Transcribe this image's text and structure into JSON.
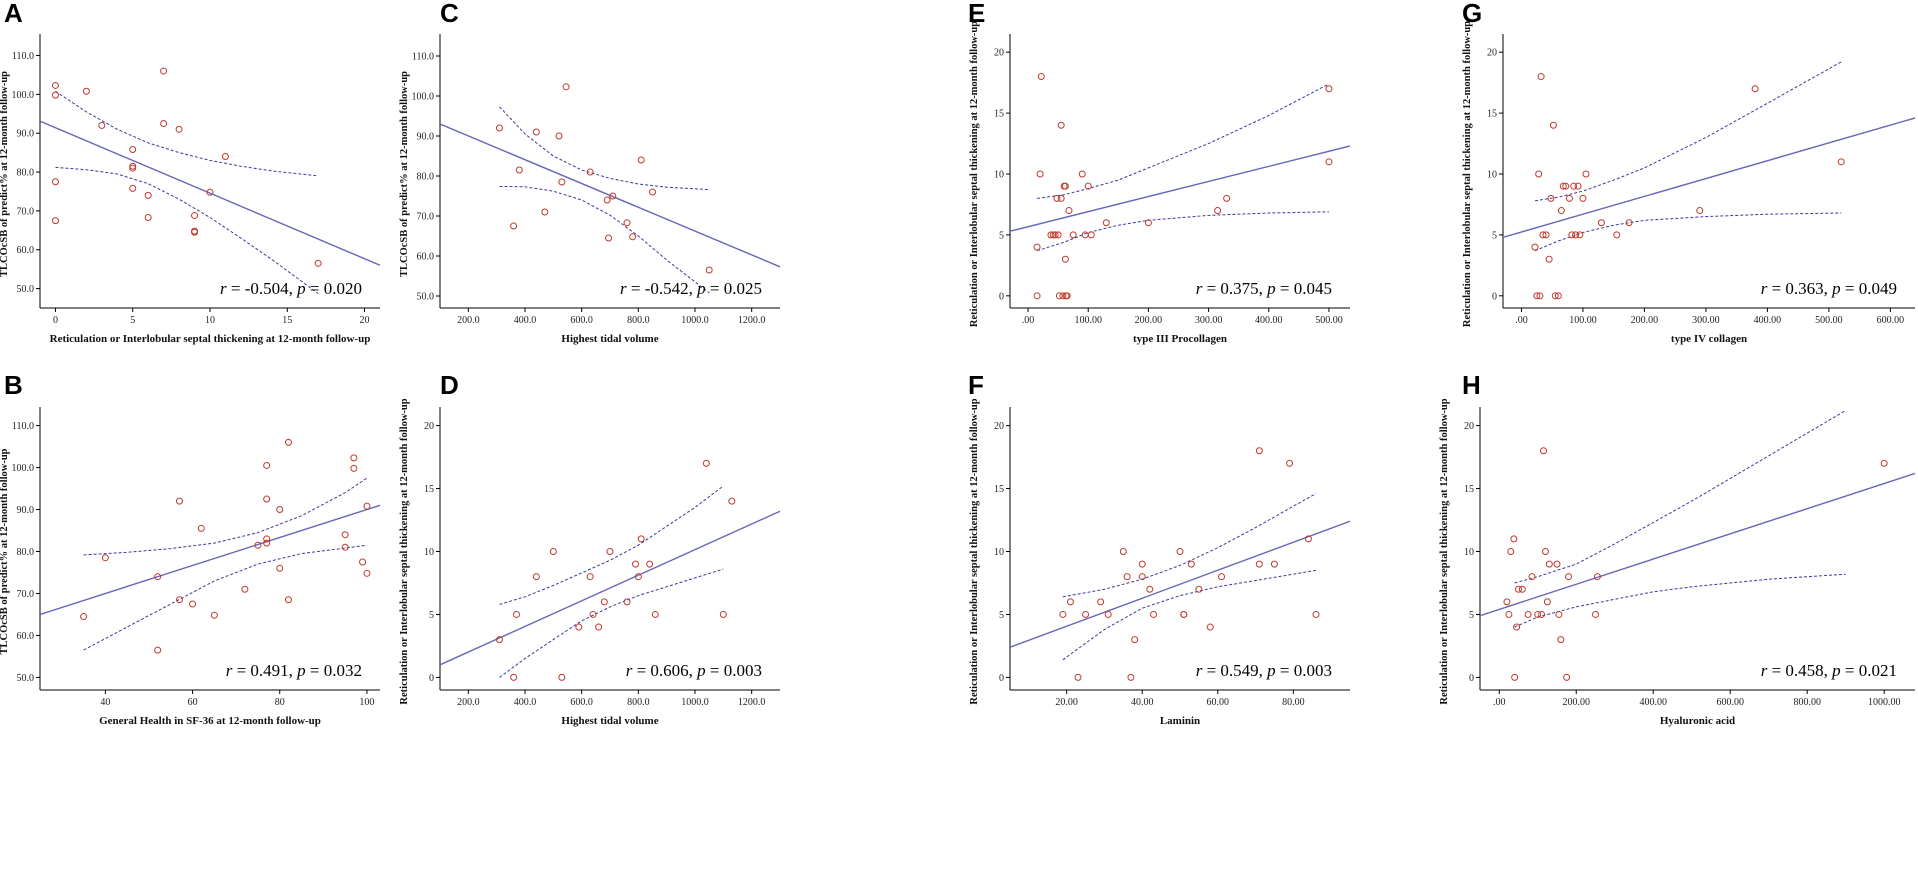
{
  "colors": {
    "points": "#c0392b",
    "fit_line": "#6666b8",
    "ci_line": "#3a3aa0"
  },
  "chart_data": [
    {
      "id": "A",
      "letter": "A",
      "type": "scatter",
      "xlabel": "Reticulation or Interlobular septal thickening at 12-month follow-up",
      "ylabel": "TLCOcSB of predict% at 12-month follow-up",
      "xlim": [
        -1,
        21
      ],
      "ylim": [
        45,
        114
      ],
      "xticks": [
        0,
        5,
        10,
        15,
        20
      ],
      "xtick_labels": [
        "0",
        "5",
        "10",
        "15",
        "20"
      ],
      "yticks": [
        50,
        60,
        70,
        80,
        90,
        100,
        110
      ],
      "ytick_labels": [
        "50.0",
        "60.0",
        "70.0",
        "80.0",
        "90.0",
        "100.0",
        "110.0"
      ],
      "x": [
        0,
        0,
        0,
        0,
        2,
        3,
        5,
        5,
        5,
        5,
        6,
        6,
        7,
        7,
        8,
        9,
        9,
        9,
        10,
        11,
        17
      ],
      "y": [
        102.3,
        99.8,
        77.5,
        67.5,
        100.8,
        92,
        85.8,
        81.5,
        81,
        75.8,
        74,
        68.3,
        106,
        92.5,
        91,
        68.8,
        64.8,
        64.5,
        74.8,
        84,
        56.5
      ],
      "fit": {
        "x": [
          -1,
          21
        ],
        "y": [
          93.1,
          56
        ]
      },
      "ci_upper": {
        "x": [
          0,
          2,
          4,
          6,
          8,
          10,
          12,
          14,
          17
        ],
        "y": [
          100.8,
          95.5,
          91,
          87.5,
          85,
          83,
          81.5,
          80.3,
          79
        ]
      },
      "ci_lower": {
        "x": [
          0,
          2,
          4,
          6,
          8,
          10,
          12,
          14,
          17
        ],
        "y": [
          81.2,
          80.6,
          79.5,
          77,
          73,
          68.3,
          63,
          57.5,
          48.7
        ]
      },
      "stat": {
        "r": "-0.504",
        "p": "0.020"
      }
    },
    {
      "id": "B",
      "letter": "B",
      "type": "scatter",
      "xlabel": "General Health in SF-36 at 12-month follow-up",
      "ylabel": "TLCOcSB of predict% at 12-month follow-up",
      "xlim": [
        25,
        103
      ],
      "ylim": [
        47,
        113
      ],
      "xticks": [
        40,
        60,
        80,
        100
      ],
      "xtick_labels": [
        "40",
        "60",
        "80",
        "100"
      ],
      "yticks": [
        50,
        60,
        70,
        80,
        90,
        100,
        110
      ],
      "ytick_labels": [
        "50.0",
        "60.0",
        "70.0",
        "80.0",
        "90.0",
        "100.0",
        "110.0"
      ],
      "x": [
        35,
        40,
        52,
        52,
        57,
        57,
        60,
        62,
        65,
        72,
        75,
        77,
        77,
        77,
        77,
        80,
        80,
        82,
        82,
        95,
        95,
        97,
        97,
        99,
        100,
        100
      ],
      "y": [
        64.5,
        78.5,
        56.5,
        74,
        68.5,
        92,
        67.5,
        85.5,
        64.8,
        71,
        81.5,
        100.5,
        92.5,
        83,
        82,
        90,
        76,
        68.5,
        106,
        84,
        81,
        102.3,
        99.8,
        77.5,
        74.8,
        90.8
      ],
      "fit": {
        "x": [
          25,
          103
        ],
        "y": [
          65,
          91
        ]
      },
      "ci_upper": {
        "x": [
          35,
          45,
          55,
          65,
          75,
          85,
          95,
          100
        ],
        "y": [
          79.2,
          79.8,
          80.7,
          82,
          84.5,
          88.5,
          94,
          97.5
        ]
      },
      "ci_lower": {
        "x": [
          35,
          45,
          55,
          65,
          75,
          85,
          95,
          100
        ],
        "y": [
          56.5,
          62,
          67.5,
          73,
          77,
          79.5,
          80.8,
          81.5
        ]
      },
      "stat": {
        "r": "0.491",
        "p": "0.032"
      }
    },
    {
      "id": "C",
      "letter": "C",
      "type": "scatter",
      "xlabel": "Highest tidal volume",
      "ylabel": "TLCOcSB of predict% at 12-month follow-up",
      "xlim": [
        100,
        1300
      ],
      "ylim": [
        47,
        114
      ],
      "xticks": [
        200,
        400,
        600,
        800,
        1000,
        1200
      ],
      "xtick_labels": [
        "200.0",
        "400.0",
        "600.0",
        "800.0",
        "1000.0",
        "1200.0"
      ],
      "yticks": [
        50,
        60,
        70,
        80,
        90,
        100,
        110
      ],
      "ytick_labels": [
        "50.0",
        "60.0",
        "70.0",
        "80.0",
        "90.0",
        "100.0",
        "110.0"
      ],
      "x": [
        310,
        360,
        380,
        440,
        470,
        520,
        530,
        545,
        630,
        690,
        695,
        710,
        760,
        780,
        810,
        850,
        1050
      ],
      "y": [
        92,
        67.5,
        81.5,
        91,
        71,
        90,
        78.5,
        102.3,
        81,
        74,
        64.5,
        75,
        68.3,
        64.8,
        84,
        76,
        56.5
      ],
      "fit": {
        "x": [
          100,
          1300
        ],
        "y": [
          93,
          57.3
        ]
      },
      "ci_upper": {
        "x": [
          310,
          400,
          500,
          600,
          700,
          800,
          900,
          1050
        ],
        "y": [
          97.3,
          90.5,
          85,
          81.5,
          79.4,
          78,
          77.2,
          76.6
        ]
      },
      "ci_lower": {
        "x": [
          310,
          400,
          500,
          600,
          700,
          800,
          900,
          1050
        ],
        "y": [
          77.4,
          77.3,
          76.2,
          74,
          70.2,
          65,
          59,
          50.8
        ]
      },
      "stat": {
        "r": "-0.542",
        "p": "0.025"
      }
    },
    {
      "id": "D",
      "letter": "D",
      "type": "scatter",
      "xlabel": "Highest tidal volume",
      "ylabel": "Reticulation or Interlobular septal thickening at 12-month follow-up",
      "xlim": [
        100,
        1300
      ],
      "ylim": [
        -1,
        21
      ],
      "xticks": [
        200,
        400,
        600,
        800,
        1000,
        1200
      ],
      "xtick_labels": [
        "200.0",
        "400.0",
        "600.0",
        "800.0",
        "1000.0",
        "1200.0"
      ],
      "yticks": [
        0,
        5,
        10,
        15,
        20
      ],
      "ytick_labels": [
        "0",
        "5",
        "10",
        "15",
        "20"
      ],
      "x": [
        310,
        360,
        370,
        440,
        500,
        530,
        590,
        630,
        640,
        660,
        680,
        700,
        760,
        790,
        800,
        810,
        840,
        860,
        1040,
        1100,
        1130
      ],
      "y": [
        3,
        0,
        5,
        8,
        10,
        0,
        4,
        8,
        5,
        4,
        6,
        10,
        6,
        9,
        8,
        11,
        9,
        5,
        17,
        5,
        14
      ],
      "fit": {
        "x": [
          100,
          1300
        ],
        "y": [
          1,
          13.2
        ]
      },
      "ci_upper": {
        "x": [
          310,
          400,
          500,
          600,
          700,
          800,
          900,
          1000,
          1100
        ],
        "y": [
          5.8,
          6.4,
          7.3,
          8.3,
          9.3,
          10.5,
          12,
          13.5,
          15.2
        ]
      },
      "ci_lower": {
        "x": [
          310,
          400,
          500,
          600,
          700,
          800,
          900,
          1000,
          1100
        ],
        "y": [
          0,
          1.5,
          3,
          4.5,
          5.6,
          6.5,
          7.2,
          7.9,
          8.6
        ]
      },
      "stat": {
        "r": "0.606",
        "p": "0.003"
      }
    },
    {
      "id": "E",
      "letter": "E",
      "type": "scatter",
      "xlabel": "type III Procollagen",
      "ylabel": "Reticulation or Interlobular septal thickening at 12-month follow-up",
      "xlim": [
        -30,
        535
      ],
      "ylim": [
        -1,
        21
      ],
      "xticks": [
        0,
        100,
        200,
        300,
        400,
        500
      ],
      "xtick_labels": [
        ".00",
        "100.00",
        "200.00",
        "300.00",
        "400.00",
        "500.00"
      ],
      "yticks": [
        0,
        5,
        10,
        15,
        20
      ],
      "ytick_labels": [
        "0",
        "5",
        "10",
        "15",
        "20"
      ],
      "x": [
        15,
        15,
        20,
        22,
        38,
        42,
        45,
        48,
        50,
        52,
        55,
        55,
        58,
        60,
        62,
        62,
        63,
        65,
        68,
        75,
        90,
        95,
        100,
        105,
        130,
        200,
        315,
        330,
        500,
        500
      ],
      "y": [
        4,
        0,
        10,
        18,
        5,
        5,
        5,
        8,
        5,
        0,
        8,
        14,
        0,
        9,
        3,
        9,
        0,
        0,
        7,
        5,
        10,
        5,
        9,
        5,
        6,
        6,
        7,
        8,
        17,
        11
      ],
      "fit": {
        "x": [
          -30,
          535
        ],
        "y": [
          5.3,
          12.3
        ]
      },
      "ci_upper": {
        "x": [
          15,
          60,
          100,
          150,
          200,
          300,
          400,
          500
        ],
        "y": [
          8,
          8.3,
          8.8,
          9.5,
          10.5,
          12.5,
          14.8,
          17.4
        ]
      },
      "ci_lower": {
        "x": [
          15,
          60,
          100,
          150,
          200,
          300,
          400,
          500
        ],
        "y": [
          3.7,
          4.4,
          5.2,
          5.8,
          6.2,
          6.6,
          6.8,
          6.9
        ]
      },
      "stat": {
        "r": "0.375",
        "p": "0.045"
      }
    },
    {
      "id": "F",
      "letter": "F",
      "type": "scatter",
      "xlabel": "Laminin",
      "ylabel": "Reticulation or Interlobular septal thickening at 12-month follow-up",
      "xlim": [
        5,
        95
      ],
      "ylim": [
        -1,
        21
      ],
      "xticks": [
        20,
        40,
        60,
        80
      ],
      "xtick_labels": [
        "20.00",
        "40.00",
        "60.00",
        "80.00"
      ],
      "yticks": [
        0,
        5,
        10,
        15,
        20
      ],
      "ytick_labels": [
        "0",
        "5",
        "10",
        "15",
        "20"
      ],
      "x": [
        19,
        21,
        23,
        25,
        29,
        31,
        35,
        36,
        37,
        38,
        40,
        40,
        42,
        43,
        50,
        51,
        51,
        53,
        55,
        58,
        61,
        71,
        71,
        75,
        79,
        84,
        86
      ],
      "y": [
        5,
        6,
        0,
        5,
        6,
        5,
        10,
        8,
        0,
        3,
        8,
        9,
        7,
        5,
        10,
        5,
        5,
        9,
        7,
        4,
        8,
        18,
        9,
        9,
        17,
        11,
        5
      ],
      "fit": {
        "x": [
          5,
          95
        ],
        "y": [
          2.4,
          12.4
        ]
      },
      "ci_upper": {
        "x": [
          19,
          30,
          40,
          50,
          60,
          70,
          80,
          86
        ],
        "y": [
          6.4,
          7,
          7.8,
          8.9,
          10.3,
          11.9,
          13.6,
          14.6
        ]
      },
      "ci_lower": {
        "x": [
          19,
          30,
          40,
          50,
          60,
          70,
          80,
          86
        ],
        "y": [
          1.4,
          3.8,
          5.5,
          6.5,
          7.2,
          7.7,
          8.2,
          8.5
        ]
      },
      "stat": {
        "r": "0.549",
        "p": "0.003"
      }
    },
    {
      "id": "G",
      "letter": "G",
      "type": "scatter",
      "xlabel": "type IV collagen",
      "ylabel": "Reticulation or Interlobular septal thickening at 12-month follow-up",
      "xlim": [
        -30,
        640
      ],
      "ylim": [
        -1,
        21
      ],
      "xticks": [
        0,
        100,
        200,
        300,
        400,
        500,
        600
      ],
      "xtick_labels": [
        ".00",
        "100.00",
        "200.00",
        "300.00",
        "400.00",
        "500.00",
        "600.00"
      ],
      "yticks": [
        0,
        5,
        10,
        15,
        20
      ],
      "ytick_labels": [
        "0",
        "5",
        "10",
        "15",
        "20"
      ],
      "x": [
        22,
        25,
        28,
        30,
        32,
        35,
        40,
        45,
        48,
        52,
        55,
        60,
        65,
        68,
        72,
        78,
        82,
        85,
        88,
        92,
        95,
        100,
        105,
        130,
        155,
        175,
        290,
        380,
        520
      ],
      "y": [
        4,
        0,
        10,
        0,
        18,
        5,
        5,
        3,
        8,
        14,
        0,
        0,
        7,
        9,
        9,
        8,
        5,
        9,
        5,
        9,
        5,
        8,
        10,
        6,
        5,
        6,
        7,
        17,
        11
      ],
      "fit": {
        "x": [
          -30,
          640
        ],
        "y": [
          4.8,
          14.6
        ]
      },
      "ci_upper": {
        "x": [
          22,
          60,
          100,
          150,
          200,
          300,
          400,
          520
        ],
        "y": [
          7.8,
          8.1,
          8.6,
          9.5,
          10.5,
          13,
          15.8,
          19.2
        ]
      },
      "ci_lower": {
        "x": [
          22,
          60,
          100,
          150,
          200,
          300,
          400,
          520
        ],
        "y": [
          3.7,
          4.5,
          5.2,
          5.8,
          6.2,
          6.5,
          6.7,
          6.8
        ]
      },
      "stat": {
        "r": "0.363",
        "p": "0.049"
      }
    },
    {
      "id": "H",
      "letter": "H",
      "type": "scatter",
      "xlabel": "Hyaluronic acid",
      "ylabel": "Reticulation or Interlobular septal thickening at 12-month follow-up",
      "xlim": [
        -50,
        1080
      ],
      "ylim": [
        -1,
        21
      ],
      "xticks": [
        0,
        200,
        400,
        600,
        800,
        1000
      ],
      "xtick_labels": [
        ".00",
        "200.00",
        "400.00",
        "600.00",
        "800.00",
        "1000.00"
      ],
      "yticks": [
        0,
        5,
        10,
        15,
        20
      ],
      "ytick_labels": [
        "0",
        "5",
        "10",
        "15",
        "20"
      ],
      "x": [
        20,
        25,
        30,
        38,
        40,
        45,
        50,
        60,
        75,
        85,
        100,
        110,
        115,
        120,
        125,
        130,
        150,
        155,
        160,
        175,
        180,
        250,
        255,
        1000
      ],
      "y": [
        6,
        5,
        10,
        11,
        0,
        4,
        7,
        7,
        5,
        8,
        5,
        5,
        18,
        10,
        6,
        9,
        9,
        5,
        3,
        0,
        8,
        5,
        8,
        17
      ],
      "fit": {
        "x": [
          -50,
          1080
        ],
        "y": [
          4.9,
          16.2
        ]
      },
      "ci_upper": {
        "x": [
          40,
          100,
          200,
          300,
          400,
          500,
          600,
          700,
          800,
          900
        ],
        "y": [
          7.5,
          8,
          9,
          10.6,
          12.3,
          14,
          15.8,
          17.6,
          19.4,
          21.2
        ]
      },
      "ci_lower": {
        "x": [
          40,
          100,
          200,
          300,
          400,
          500,
          600,
          700,
          800,
          900
        ],
        "y": [
          4,
          4.8,
          5.6,
          6.2,
          6.8,
          7.2,
          7.5,
          7.8,
          8,
          8.2
        ]
      },
      "stat": {
        "r": "0.458",
        "p": "0.021"
      }
    }
  ]
}
